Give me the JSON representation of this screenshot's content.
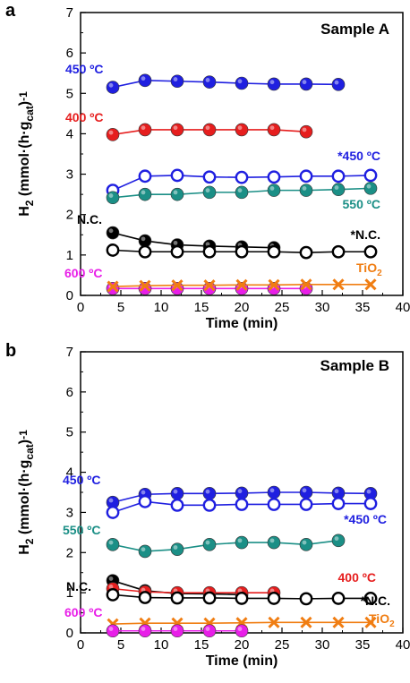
{
  "figure": {
    "xlabel": "Time (min)",
    "ylabel": "H2 (mmol·(h·gcat)-1)",
    "ylabel_parts": {
      "h": "H",
      "h_sub": "2",
      "paren": " (mmol·(h·g",
      "cat_sub": "cat",
      "close": ")",
      "sup": "-1"
    }
  },
  "chart_data": [
    {
      "type": "line",
      "panel": "a",
      "title": "Sample A",
      "xlabel": "Time (min)",
      "ylabel": "H2 (mmol·(h·gcat)-1)",
      "xlim": [
        0,
        40
      ],
      "ylim": [
        0,
        7
      ],
      "xticks": [
        0,
        5,
        10,
        15,
        20,
        25,
        30,
        35,
        40
      ],
      "yticks": [
        0,
        1,
        2,
        3,
        4,
        5,
        6,
        7
      ],
      "grid": false,
      "series": [
        {
          "name": "450 ºC",
          "color": "#1f1fe0",
          "marker": "filled-circle",
          "x": [
            4,
            8,
            12,
            16,
            20,
            24,
            28,
            32
          ],
          "y": [
            5.15,
            5.32,
            5.3,
            5.28,
            5.25,
            5.23,
            5.23,
            5.22
          ]
        },
        {
          "name": "400 ºC",
          "color": "#e61e1e",
          "marker": "filled-circle",
          "x": [
            4,
            8,
            12,
            16,
            20,
            24,
            28
          ],
          "y": [
            3.98,
            4.1,
            4.1,
            4.1,
            4.1,
            4.1,
            4.05
          ]
        },
        {
          "name": "*450 ºC",
          "color": "#1f1fe0",
          "marker": "open-circle",
          "x": [
            4,
            8,
            12,
            16,
            20,
            24,
            28,
            32,
            36
          ],
          "y": [
            2.6,
            2.95,
            2.97,
            2.93,
            2.92,
            2.93,
            2.95,
            2.95,
            2.97
          ]
        },
        {
          "name": "550 ºC",
          "color": "#1b8f86",
          "marker": "filled-circle",
          "x": [
            4,
            8,
            12,
            16,
            20,
            24,
            28,
            32,
            36
          ],
          "y": [
            2.42,
            2.5,
            2.5,
            2.55,
            2.55,
            2.6,
            2.6,
            2.62,
            2.65
          ]
        },
        {
          "name": "N.C.",
          "color": "#000000",
          "marker": "filled-circle",
          "x": [
            4,
            8,
            12,
            16,
            20,
            24
          ],
          "y": [
            1.55,
            1.35,
            1.25,
            1.22,
            1.2,
            1.18
          ]
        },
        {
          "name": "*N.C.",
          "color": "#000000",
          "marker": "open-circle",
          "x": [
            4,
            8,
            12,
            16,
            20,
            24,
            28,
            32,
            36
          ],
          "y": [
            1.12,
            1.08,
            1.08,
            1.08,
            1.08,
            1.08,
            1.06,
            1.08,
            1.08
          ]
        },
        {
          "name": "600 ºC",
          "color": "#e81ee8",
          "marker": "filled-circle",
          "x": [
            4,
            8,
            12,
            16,
            20,
            24,
            28
          ],
          "y": [
            0.17,
            0.17,
            0.17,
            0.17,
            0.17,
            0.17,
            0.17
          ]
        },
        {
          "name": "TiO2",
          "color": "#f07d12",
          "marker": "x",
          "x": [
            4,
            8,
            12,
            16,
            20,
            24,
            28,
            32,
            36
          ],
          "y": [
            0.22,
            0.24,
            0.25,
            0.25,
            0.26,
            0.26,
            0.27,
            0.27,
            0.27
          ]
        }
      ]
    },
    {
      "type": "line",
      "panel": "b",
      "title": "Sample B",
      "xlabel": "Time (min)",
      "ylabel": "H2 (mmol·(h·gcat)-1)",
      "xlim": [
        0,
        40
      ],
      "ylim": [
        0,
        7
      ],
      "xticks": [
        0,
        5,
        10,
        15,
        20,
        25,
        30,
        35,
        40
      ],
      "yticks": [
        0,
        1,
        2,
        3,
        4,
        5,
        6,
        7
      ],
      "grid": false,
      "series": [
        {
          "name": "450 ºC",
          "color": "#1f1fe0",
          "marker": "filled-circle",
          "x": [
            4,
            8,
            12,
            16,
            20,
            24,
            28,
            32,
            36
          ],
          "y": [
            3.25,
            3.45,
            3.47,
            3.47,
            3.48,
            3.5,
            3.5,
            3.48,
            3.47
          ]
        },
        {
          "name": "*450 ºC",
          "color": "#1f1fe0",
          "marker": "open-circle",
          "x": [
            4,
            8,
            12,
            16,
            20,
            24,
            28,
            32,
            36
          ],
          "y": [
            3.0,
            3.27,
            3.18,
            3.18,
            3.2,
            3.2,
            3.2,
            3.22,
            3.22
          ]
        },
        {
          "name": "550 ºC",
          "color": "#1b8f86",
          "marker": "filled-circle",
          "x": [
            4,
            8,
            12,
            16,
            20,
            24,
            28,
            32
          ],
          "y": [
            2.2,
            2.03,
            2.08,
            2.2,
            2.25,
            2.25,
            2.2,
            2.3
          ]
        },
        {
          "name": "N.C.",
          "color": "#000000",
          "marker": "filled-circle",
          "x": [
            4,
            8,
            12,
            16,
            20
          ],
          "y": [
            1.3,
            1.05,
            0.98,
            0.97,
            0.95
          ]
        },
        {
          "name": "400 ºC",
          "color": "#e61e1e",
          "marker": "filled-circle",
          "x": [
            4,
            8,
            12,
            16,
            20,
            24
          ],
          "y": [
            1.1,
            1.02,
            1.0,
            1.0,
            1.0,
            1.0
          ]
        },
        {
          "name": "*N.C.",
          "color": "#000000",
          "marker": "open-circle",
          "x": [
            4,
            8,
            12,
            16,
            20,
            24,
            28,
            32,
            36
          ],
          "y": [
            0.95,
            0.88,
            0.87,
            0.87,
            0.86,
            0.86,
            0.85,
            0.86,
            0.86
          ]
        },
        {
          "name": "TiO2",
          "color": "#f07d12",
          "marker": "x",
          "x": [
            4,
            8,
            12,
            16,
            20,
            24,
            28,
            32,
            36
          ],
          "y": [
            0.22,
            0.24,
            0.24,
            0.24,
            0.25,
            0.26,
            0.26,
            0.26,
            0.26
          ]
        },
        {
          "name": "600 ºC",
          "color": "#e81ee8",
          "marker": "filled-circle",
          "x": [
            4,
            8,
            12,
            16,
            20
          ],
          "y": [
            0.05,
            0.05,
            0.05,
            0.05,
            0.05
          ]
        }
      ]
    }
  ]
}
